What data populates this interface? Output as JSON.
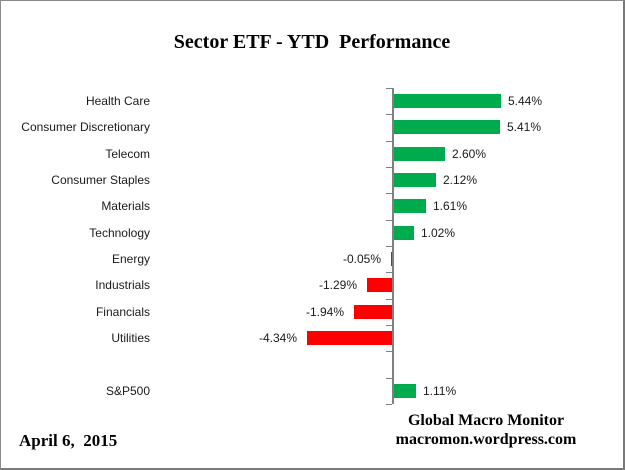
{
  "title": "Sector ETF - YTD  Performance",
  "footer": {
    "date": "April 6,  2015",
    "credit_line1": "Global Macro Monitor",
    "credit_line2": "macromon.wordpress.com"
  },
  "colors": {
    "positive_bar": "#00AB4E",
    "negative_bar": "#FF0000",
    "axis": "#808080",
    "label_text": "#1a1a1a",
    "title_text": "#000000"
  },
  "chart_data": {
    "type": "bar",
    "orientation": "horizontal",
    "title": "Sector ETF - YTD  Performance",
    "unit": "%",
    "categories": [
      "Health Care",
      "Consumer Discretionary",
      "Telecom",
      "Consumer Staples",
      "Materials",
      "Technology",
      "Energy",
      "Industrials",
      "Financials",
      "Utilities",
      "S&P500"
    ],
    "values": [
      5.44,
      5.41,
      2.6,
      2.12,
      1.61,
      1.02,
      -0.05,
      -1.29,
      -1.94,
      -4.34,
      1.11
    ],
    "value_labels": [
      "5.44%",
      "5.41%",
      "2.60%",
      "2.12%",
      "1.61%",
      "1.02%",
      "-0.05%",
      "-1.29%",
      "-1.94%",
      "-4.34%",
      "1.11%"
    ],
    "gap_row_before_index": 10,
    "xlim": [
      -5,
      12
    ],
    "grid": false,
    "legend": false,
    "value_labels_shown": true
  }
}
